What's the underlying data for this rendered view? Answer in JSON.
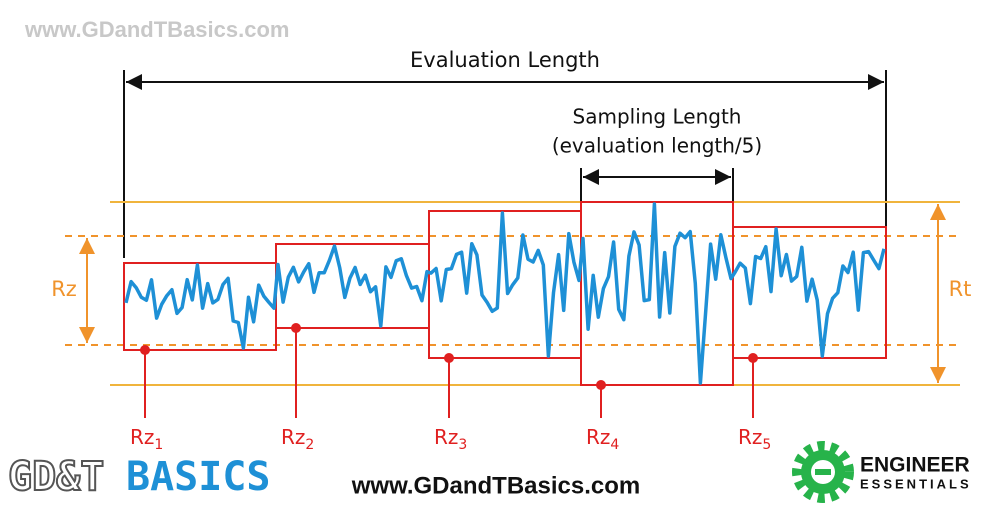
{
  "watermark": "www.GDandTBasics.com",
  "evaluation_length": "Evaluation Length",
  "sampling_length": {
    "line1": "Sampling Length",
    "line2": "(evaluation length/5)"
  },
  "rz_label": "Rz",
  "rt_label": "Rt",
  "segments": [
    {
      "main": "Rz",
      "sub": "1"
    },
    {
      "main": "Rz",
      "sub": "2"
    },
    {
      "main": "Rz",
      "sub": "3"
    },
    {
      "main": "Rz",
      "sub": "4"
    },
    {
      "main": "Rz",
      "sub": "5"
    }
  ],
  "footer": {
    "logo_left_1": "GD&T",
    "logo_left_2": "BASICS",
    "url": "www.GDandTBasics.com",
    "logo_right_1": "ENGINEER",
    "logo_right_2": "ESSENTIALS"
  }
}
